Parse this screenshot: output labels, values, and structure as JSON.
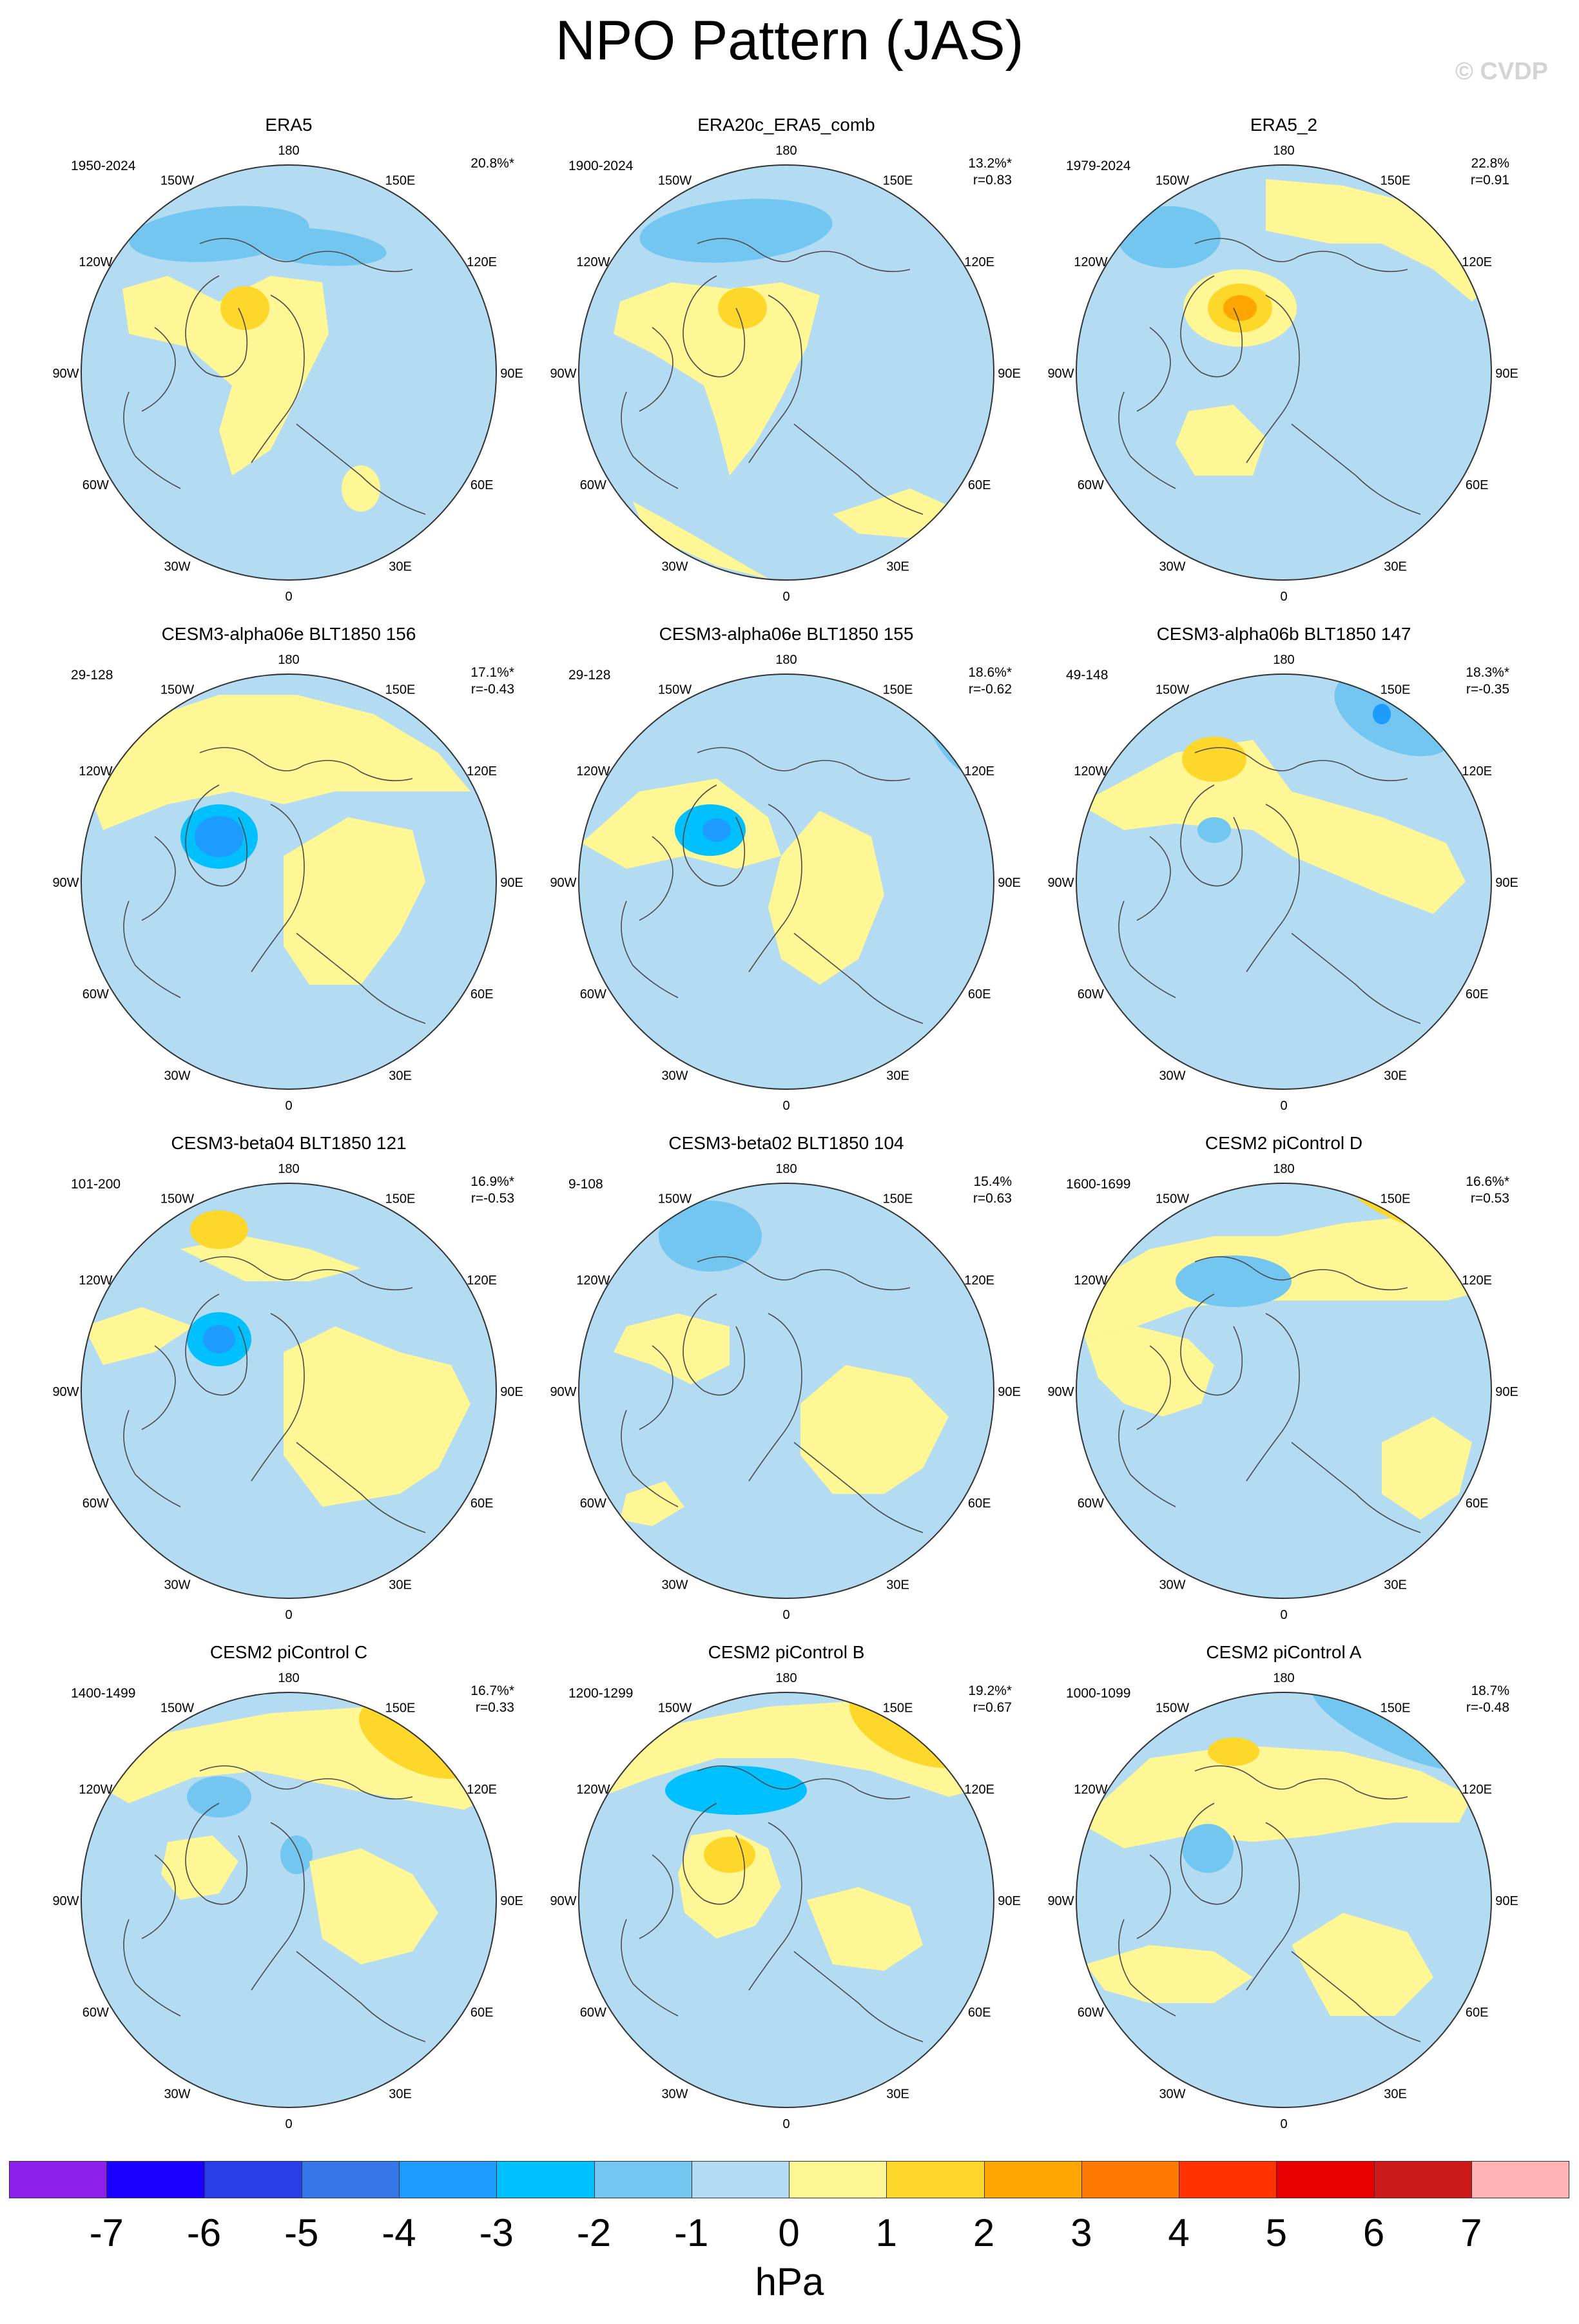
{
  "title": "NPO Pattern (JAS)",
  "watermark": "© CVDP",
  "colors": {
    "ocean_background": "#b3dcf2",
    "coast": "#4a4a4a",
    "ring": "#333333"
  },
  "lon_labels": [
    "180",
    "150E",
    "120E",
    "90E",
    "60E",
    "30E",
    "0",
    "30W",
    "60W",
    "90W",
    "120W",
    "150W"
  ],
  "panels": [
    {
      "title": "ERA5",
      "years": "1950-2024",
      "pct": "20.8%*",
      "r": ""
    },
    {
      "title": "ERA20c_ERA5_comb",
      "years": "1900-2024",
      "pct": "13.2%*",
      "r": "r=0.83"
    },
    {
      "title": "ERA5_2",
      "years": "1979-2024",
      "pct": "22.8%",
      "r": "r=0.91"
    },
    {
      "title": "CESM3-alpha06e BLT1850 156",
      "years": "29-128",
      "pct": "17.1%*",
      "r": "r=-0.43"
    },
    {
      "title": "CESM3-alpha06e BLT1850 155",
      "years": "29-128",
      "pct": "18.6%*",
      "r": "r=-0.62"
    },
    {
      "title": "CESM3-alpha06b BLT1850 147",
      "years": "49-148",
      "pct": "18.3%*",
      "r": "r=-0.35"
    },
    {
      "title": "CESM3-beta04 BLT1850 121",
      "years": "101-200",
      "pct": "16.9%*",
      "r": "r=-0.53"
    },
    {
      "title": "CESM3-beta02 BLT1850 104",
      "years": "9-108",
      "pct": "15.4%",
      "r": "r=0.63"
    },
    {
      "title": "CESM2 piControl D",
      "years": "1600-1699",
      "pct": "16.6%*",
      "r": "r=0.53"
    },
    {
      "title": "CESM2 piControl C",
      "years": "1400-1499",
      "pct": "16.7%*",
      "r": "r=0.33"
    },
    {
      "title": "CESM2 piControl B",
      "years": "1200-1299",
      "pct": "19.2%*",
      "r": "r=0.67"
    },
    {
      "title": "CESM2 piControl A",
      "years": "1000-1099",
      "pct": "18.7%",
      "r": "r=-0.48"
    }
  ],
  "colorbar": {
    "units": "hPa",
    "colors": [
      "#8c20e8",
      "#1a00ff",
      "#2a3ee8",
      "#3377e8",
      "#1e9bff",
      "#00c0ff",
      "#73c6f0",
      "#b3dcf2",
      "#fff695",
      "#fdd72a",
      "#ffa500",
      "#ff7a00",
      "#ff3300",
      "#e80000",
      "#cc1a1a",
      "#ffb3b3"
    ],
    "labels": [
      "-7",
      "-6",
      "-5",
      "-4",
      "-3",
      "-2",
      "-1",
      "0",
      "1",
      "2",
      "3",
      "4",
      "5",
      "6",
      "7"
    ]
  }
}
